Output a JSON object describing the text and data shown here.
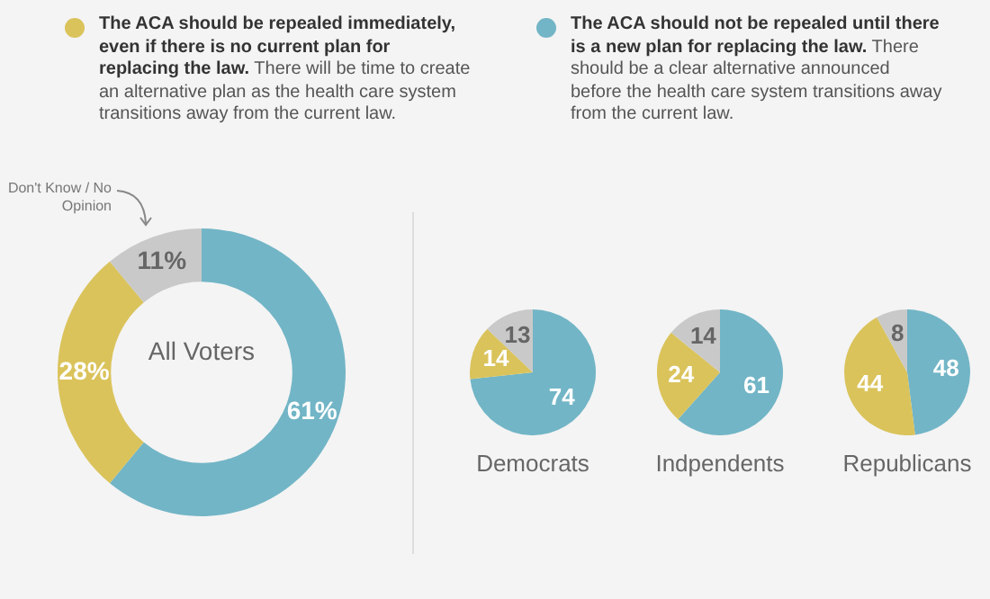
{
  "chart_data": [
    {
      "type": "donut",
      "title": "All Voters",
      "legend": "top",
      "categories": [
        "The ACA should not be repealed until there is a new plan for replacing the law. There should be a clear alternative announced before the health care system transitions away from the current law.",
        "The ACA should be repealed immediately, even if there is no current plan for replacing the law. There will be time to create an alternative plan as the health care system transitions away from the current law.",
        "Don't Know / No Opinion"
      ],
      "values": [
        61,
        28,
        11
      ],
      "colors": [
        "#72b5c6",
        "#dac35b",
        "#c9c9c9"
      ],
      "value_labels": [
        "61%",
        "28%",
        "11%"
      ]
    },
    {
      "type": "pie",
      "title": "Democrats",
      "categories": [
        null,
        null,
        null
      ],
      "values": [
        74,
        14,
        13
      ],
      "colors": [
        "#72b5c6",
        "#dac35b",
        "#c9c9c9"
      ],
      "data_labels": true
    },
    {
      "type": "pie",
      "title": "Indpendents",
      "categories": [
        null,
        null,
        null
      ],
      "values": [
        61,
        24,
        14
      ],
      "colors": [
        "#72b5c6",
        "#dac35b",
        "#c9c9c9"
      ],
      "data_labels": true
    },
    {
      "type": "pie",
      "title": "Republicans",
      "categories": [
        null,
        null,
        null
      ],
      "values": [
        48,
        44,
        8
      ],
      "colors": [
        "#72b5c6",
        "#dac35b",
        "#c9c9c9"
      ],
      "data_labels": true
    }
  ]
}
